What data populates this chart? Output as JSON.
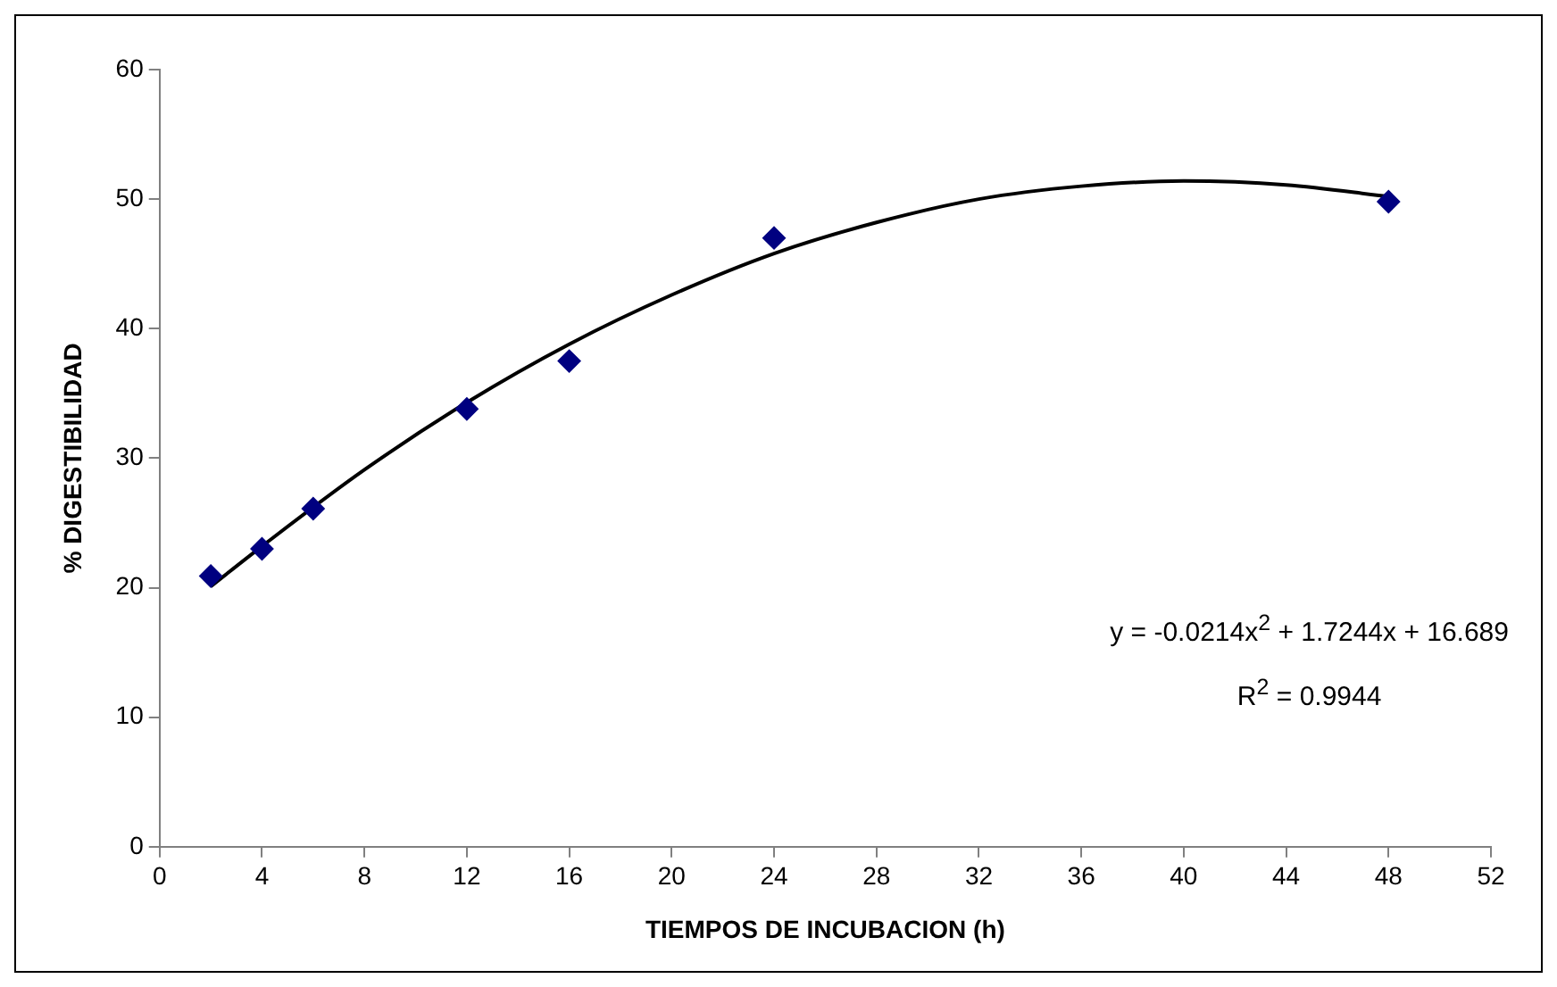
{
  "chart_data": {
    "type": "scatter",
    "xlabel": "TIEMPOS DE INCUBACION (h)",
    "ylabel": "% DIGESTIBILIDAD",
    "x": [
      2,
      4,
      6,
      12,
      16,
      24,
      48
    ],
    "series": [
      {
        "type": "scatter",
        "color": "#000080",
        "values": [
          20.9,
          23.0,
          26.1,
          33.8,
          37.5,
          47.0,
          49.8
        ],
        "marker": "diamond"
      },
      {
        "type": "line",
        "color": "#000000",
        "x": [
          2,
          4,
          8,
          12,
          16,
          20,
          24,
          28,
          32,
          36,
          40,
          44,
          48
        ],
        "values": [
          20.1,
          23.2,
          29.1,
          34.3,
          38.8,
          42.6,
          45.8,
          48.2,
          50.0,
          51.0,
          51.4,
          51.1,
          50.2
        ],
        "marker": "none",
        "line_style": "solid"
      }
    ],
    "xlim": [
      0,
      52
    ],
    "xticks": [
      0,
      4,
      8,
      12,
      16,
      20,
      24,
      28,
      32,
      36,
      40,
      44,
      48,
      52
    ],
    "ylim": [
      0,
      60
    ],
    "yticks": [
      0,
      10,
      20,
      30,
      40,
      50,
      60
    ],
    "grid": false,
    "legend": false,
    "annotations": [
      "y = -0.0214x$^{2}$ + 1.7244x + 16.689",
      "R$^{2}$ = 0.9944"
    ]
  }
}
